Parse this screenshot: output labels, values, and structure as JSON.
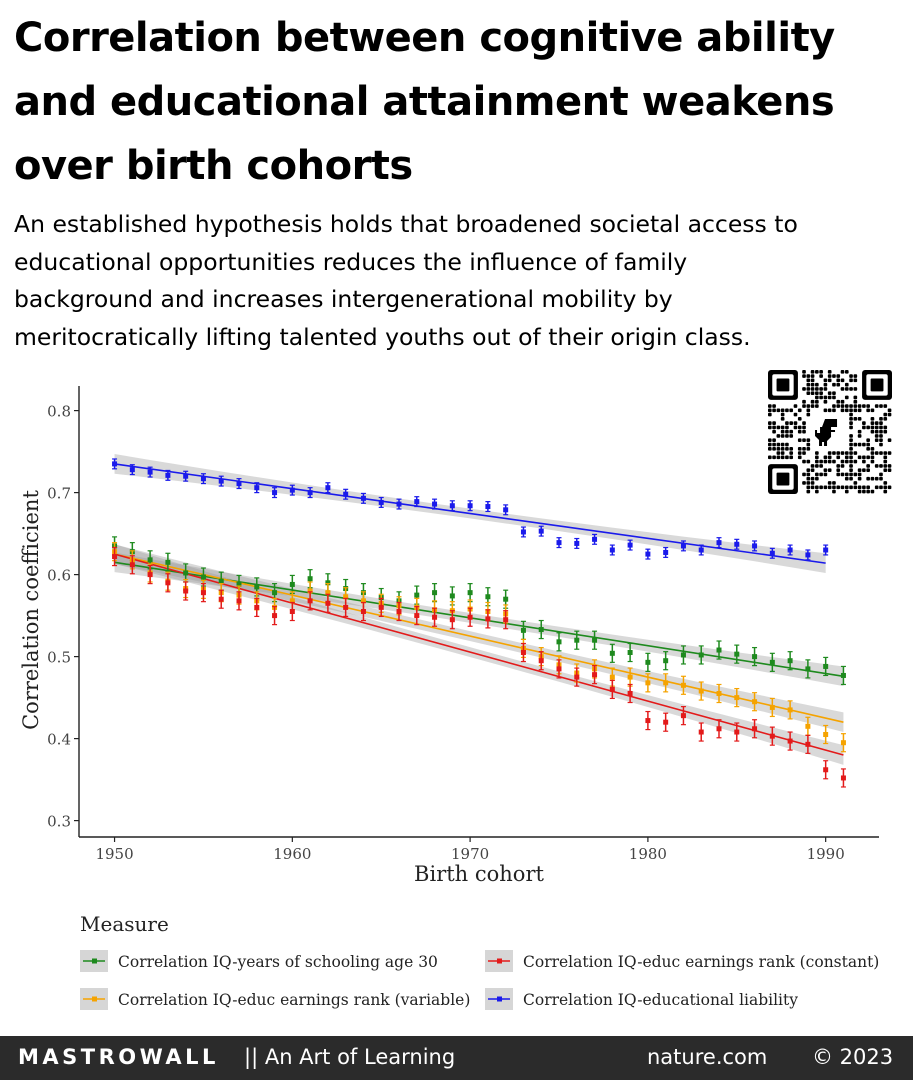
{
  "header": {
    "title_lines": [
      "Correlation between cognitive ability",
      "and educational attainment weakens",
      "over birth cohorts"
    ],
    "subtitle_lines": [
      "An established hypothesis holds that broadened societal access to",
      "educational opportunities reduces the influence of family",
      "background and increases intergenerational mobility by",
      "meritocratically lifting talented youths out of their origin class."
    ]
  },
  "chart_data": {
    "type": "scatter",
    "xlabel": "Birth cohort",
    "ylabel": "Correlation coefficient",
    "xlim": [
      1948,
      1993
    ],
    "ylim": [
      0.28,
      0.83
    ],
    "xticks": [
      1950,
      1960,
      1970,
      1980,
      1990
    ],
    "yticks": [
      0.3,
      0.4,
      0.5,
      0.6,
      0.7,
      0.8
    ],
    "grid": false,
    "legend_title": "Measure",
    "legend_position": "bottom",
    "series": [
      {
        "name": "Correlation IQ-years of schooling age 30",
        "color": "#1e8a1e",
        "x": [
          1950,
          1951,
          1952,
          1953,
          1954,
          1955,
          1956,
          1957,
          1958,
          1959,
          1960,
          1961,
          1962,
          1963,
          1964,
          1965,
          1966,
          1967,
          1968,
          1969,
          1970,
          1971,
          1972,
          1973,
          1974,
          1975,
          1976,
          1977,
          1978,
          1979,
          1980,
          1981,
          1982,
          1983,
          1984,
          1985,
          1986,
          1987,
          1988,
          1989,
          1990,
          1991
        ],
        "y": [
          0.635,
          0.628,
          0.618,
          0.615,
          0.602,
          0.597,
          0.592,
          0.588,
          0.585,
          0.578,
          0.588,
          0.595,
          0.59,
          0.583,
          0.578,
          0.572,
          0.568,
          0.575,
          0.578,
          0.574,
          0.578,
          0.573,
          0.57,
          0.532,
          0.533,
          0.518,
          0.52,
          0.52,
          0.504,
          0.505,
          0.493,
          0.495,
          0.502,
          0.502,
          0.508,
          0.503,
          0.5,
          0.493,
          0.495,
          0.485,
          0.488,
          0.477
        ],
        "trend": [
          0.615,
          0.476
        ]
      },
      {
        "name": "Correlation IQ-educ earnings rank (variable)",
        "color": "#f5a300",
        "x": [
          1950,
          1951,
          1952,
          1953,
          1954,
          1955,
          1956,
          1957,
          1958,
          1959,
          1960,
          1961,
          1962,
          1963,
          1964,
          1965,
          1966,
          1967,
          1968,
          1969,
          1970,
          1971,
          1972,
          1973,
          1974,
          1975,
          1976,
          1977,
          1978,
          1979,
          1980,
          1981,
          1982,
          1983,
          1984,
          1985,
          1986,
          1987,
          1988,
          1989,
          1990,
          1991
        ],
        "y": [
          0.628,
          0.618,
          0.602,
          0.592,
          0.583,
          0.582,
          0.578,
          0.575,
          0.568,
          0.56,
          0.568,
          0.58,
          0.578,
          0.573,
          0.568,
          0.565,
          0.562,
          0.56,
          0.557,
          0.556,
          0.558,
          0.555,
          0.552,
          0.51,
          0.5,
          0.49,
          0.48,
          0.485,
          0.475,
          0.475,
          0.468,
          0.468,
          0.465,
          0.458,
          0.455,
          0.45,
          0.445,
          0.438,
          0.435,
          0.415,
          0.405,
          0.395
        ],
        "trend": [
          0.625,
          0.42
        ]
      },
      {
        "name": "Correlation IQ-educ earnings rank (constant)",
        "color": "#e31a1a",
        "x": [
          1950,
          1951,
          1952,
          1953,
          1954,
          1955,
          1956,
          1957,
          1958,
          1959,
          1960,
          1961,
          1962,
          1963,
          1964,
          1965,
          1966,
          1967,
          1968,
          1969,
          1970,
          1971,
          1972,
          1973,
          1974,
          1975,
          1976,
          1977,
          1978,
          1979,
          1980,
          1981,
          1982,
          1983,
          1984,
          1985,
          1986,
          1987,
          1988,
          1989,
          1990,
          1991
        ],
        "y": [
          0.622,
          0.612,
          0.6,
          0.59,
          0.58,
          0.578,
          0.57,
          0.568,
          0.56,
          0.55,
          0.555,
          0.568,
          0.565,
          0.56,
          0.555,
          0.56,
          0.555,
          0.55,
          0.548,
          0.545,
          0.548,
          0.546,
          0.545,
          0.505,
          0.495,
          0.485,
          0.475,
          0.478,
          0.46,
          0.455,
          0.422,
          0.42,
          0.428,
          0.408,
          0.412,
          0.408,
          0.412,
          0.403,
          0.397,
          0.393,
          0.362,
          0.352
        ],
        "trend": [
          0.625,
          0.38
        ]
      },
      {
        "name": "Correlation IQ-educational liability",
        "color": "#1a1aeb",
        "x": [
          1950,
          1951,
          1952,
          1953,
          1954,
          1955,
          1956,
          1957,
          1958,
          1959,
          1960,
          1961,
          1962,
          1963,
          1964,
          1965,
          1966,
          1967,
          1968,
          1969,
          1970,
          1971,
          1972,
          1973,
          1974,
          1975,
          1976,
          1977,
          1978,
          1979,
          1980,
          1981,
          1982,
          1983,
          1984,
          1985,
          1986,
          1987,
          1988,
          1989,
          1990
        ],
        "y": [
          0.735,
          0.728,
          0.725,
          0.721,
          0.72,
          0.717,
          0.714,
          0.711,
          0.706,
          0.7,
          0.703,
          0.7,
          0.706,
          0.698,
          0.693,
          0.688,
          0.686,
          0.689,
          0.686,
          0.684,
          0.684,
          0.683,
          0.679,
          0.652,
          0.653,
          0.639,
          0.638,
          0.643,
          0.63,
          0.636,
          0.625,
          0.627,
          0.635,
          0.63,
          0.639,
          0.637,
          0.635,
          0.626,
          0.63,
          0.624,
          0.63
        ],
        "trend": [
          0.735,
          0.614
        ]
      }
    ]
  },
  "qr": {
    "alt": "QR code with dinosaur"
  },
  "footer": {
    "brand": "MASTROWALL",
    "tagline": "|| An Art of Learning",
    "site": "nature.com",
    "copyright": "© 2023"
  }
}
